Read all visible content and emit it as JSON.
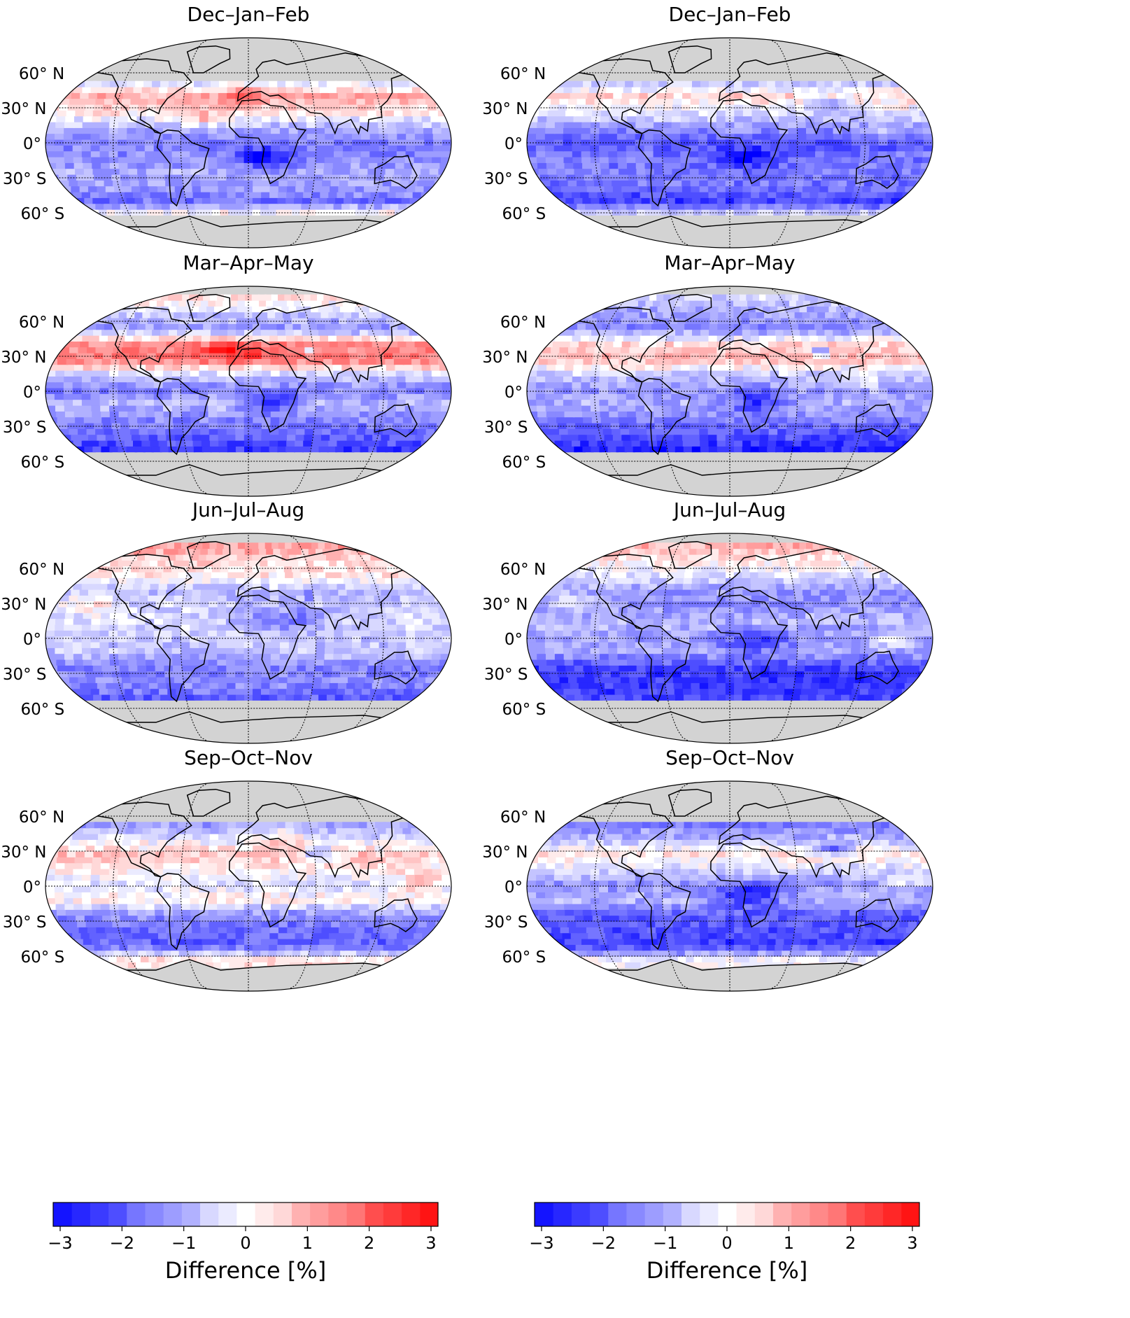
{
  "panels": [
    {
      "title": "Dec–Jan–Feb",
      "col": 0,
      "row": 0,
      "mask_north": 50,
      "mask_south": -62,
      "profile": [
        -1.5,
        -2.0,
        -1.3,
        -0.6,
        0.9,
        0.4,
        -0.8,
        -1.5,
        -1.4,
        -1.0,
        -1.1,
        -1.7,
        0.7
      ],
      "hotspots": [
        [
          1.2,
          38,
          -8,
          10,
          18
        ],
        [
          -1.8,
          -15,
          10,
          8,
          25
        ],
        [
          1.0,
          18,
          -45,
          6,
          20
        ]
      ]
    },
    {
      "title": "Mar–Apr–May",
      "col": 0,
      "row": 1,
      "mask_north": 80,
      "mask_south": -52,
      "profile": [
        0.8,
        0.4,
        -0.6,
        -1.2,
        1.3,
        1.6,
        -0.5,
        -1.5,
        -0.8,
        -1.4,
        -1.8,
        -2.3,
        0
      ],
      "hotspots": [
        [
          1.2,
          32,
          -20,
          8,
          30
        ],
        [
          -1.5,
          -12,
          15,
          8,
          25
        ],
        [
          -2.5,
          34,
          50,
          3,
          3
        ]
      ]
    },
    {
      "title": "Jun–Jul–Aug",
      "col": 0,
      "row": 2,
      "mask_north": 80,
      "mask_south": -53,
      "profile": [
        1.7,
        1.1,
        0.5,
        0.2,
        -0.9,
        -0.5,
        -0.4,
        -0.6,
        -0.7,
        -1.5,
        -1.3,
        -1.9,
        0
      ],
      "hotspots": [
        [
          1.0,
          28,
          -150,
          10,
          25
        ],
        [
          -1.2,
          15,
          30,
          10,
          40
        ],
        [
          -2.0,
          34,
          50,
          3,
          3
        ]
      ]
    },
    {
      "title": "Sep–Oct–Nov",
      "col": 0,
      "row": 3,
      "mask_north": 55,
      "mask_south": -70,
      "profile": [
        -1.5,
        -1.1,
        -0.8,
        -1.2,
        -0.3,
        0.7,
        0.2,
        -0.4,
        0.2,
        -1.3,
        -1.7,
        -1.9,
        0.4
      ],
      "hotspots": [
        [
          0.9,
          40,
          30,
          10,
          25
        ],
        [
          -1.8,
          25,
          60,
          6,
          15
        ],
        [
          1.0,
          0,
          150,
          8,
          20
        ]
      ]
    },
    {
      "title": "Dec–Jan–Feb",
      "col": 1,
      "row": 0,
      "mask_north": 50,
      "mask_south": -62,
      "profile": [
        -2.4,
        -2.6,
        -1.7,
        -0.9,
        0.4,
        -0.2,
        -1.1,
        -2.0,
        -1.6,
        -1.5,
        -1.6,
        -2.3,
        0.2
      ],
      "hotspots": [
        [
          -1.4,
          -15,
          10,
          8,
          30
        ],
        [
          -1.0,
          30,
          90,
          8,
          20
        ],
        [
          0.8,
          5,
          130,
          6,
          20
        ]
      ]
    },
    {
      "title": "Mar–Apr–May",
      "col": 1,
      "row": 1,
      "mask_north": 80,
      "mask_south": -52,
      "profile": [
        0.6,
        -0.6,
        -1.1,
        -1.4,
        0.5,
        0.8,
        -0.6,
        -1.2,
        -0.9,
        -1.5,
        -2.0,
        -2.6,
        0
      ],
      "hotspots": [
        [
          -1.5,
          -10,
          20,
          10,
          25
        ],
        [
          -2.0,
          32,
          80,
          4,
          8
        ],
        [
          0.8,
          5,
          120,
          6,
          15
        ]
      ]
    },
    {
      "title": "Jun–Jul–Aug",
      "col": 1,
      "row": 2,
      "mask_north": 80,
      "mask_south": -53,
      "profile": [
        1.5,
        0.9,
        0.2,
        -0.4,
        -1.2,
        -1.3,
        -0.8,
        -1.1,
        -1.0,
        -2.2,
        -2.4,
        -2.2,
        0
      ],
      "hotspots": [
        [
          -1.3,
          -5,
          20,
          10,
          30
        ],
        [
          1.2,
          -3,
          140,
          6,
          15
        ],
        [
          1.0,
          30,
          -150,
          8,
          25
        ]
      ]
    },
    {
      "title": "Sep–Oct–Nov",
      "col": 1,
      "row": 3,
      "mask_north": 55,
      "mask_south": -70,
      "profile": [
        -2.3,
        -2.0,
        -1.5,
        -1.6,
        -0.8,
        0.3,
        -0.4,
        -1.3,
        -0.8,
        -1.9,
        -2.0,
        -2.3,
        0
      ],
      "hotspots": [
        [
          -1.6,
          -10,
          15,
          10,
          30
        ],
        [
          -2.0,
          30,
          90,
          5,
          15
        ],
        [
          1.1,
          0,
          150,
          6,
          20
        ]
      ]
    }
  ],
  "lat_labels": [
    "60° N",
    "30° N",
    "0°",
    "30° S",
    "60° S"
  ],
  "colorbars": [
    {
      "ticks": [
        "−3",
        "−2",
        "−1",
        "0",
        "1",
        "2",
        "3"
      ],
      "label": "Difference [%]"
    },
    {
      "ticks": [
        "−3",
        "−2",
        "−1",
        "0",
        "1",
        "2",
        "3"
      ],
      "label": "Difference [%]"
    }
  ],
  "colorscale": {
    "min": -3,
    "max": 3,
    "levels": 27,
    "low": "#0000ff",
    "mid": "#ffffff",
    "high": "#ff0000"
  },
  "colors": {
    "land_mask": "#d3d3d3",
    "coast": "#000000",
    "grid": "#000000"
  }
}
